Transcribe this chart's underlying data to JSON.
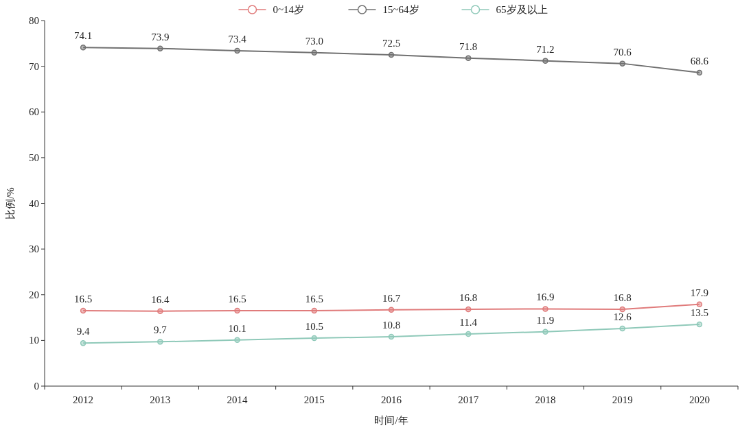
{
  "chart_data": {
    "type": "line",
    "xlabel": "时间/年",
    "ylabel": "比例/%",
    "categories": [
      "2012",
      "2013",
      "2014",
      "2015",
      "2016",
      "2017",
      "2018",
      "2019",
      "2020"
    ],
    "series": [
      {
        "name": "0~14岁",
        "color": "#e07b7b",
        "values": [
          16.5,
          16.4,
          16.5,
          16.5,
          16.7,
          16.8,
          16.9,
          16.8,
          17.9
        ],
        "value_labels": [
          "16.5",
          "16.4",
          "16.5",
          "16.5",
          "16.7",
          "16.8",
          "16.9",
          "16.8",
          "17.9"
        ]
      },
      {
        "name": "15~64岁",
        "color": "#707070",
        "values": [
          74.1,
          73.9,
          73.4,
          73.0,
          72.5,
          71.8,
          71.2,
          70.6,
          68.6
        ],
        "value_labels": [
          "74.1",
          "73.9",
          "73.4",
          "73.0",
          "72.5",
          "71.8",
          "71.2",
          "70.6",
          "68.6"
        ]
      },
      {
        "name": "65岁及以上",
        "color": "#8fc9b9",
        "values": [
          9.4,
          9.7,
          10.1,
          10.5,
          10.8,
          11.4,
          11.9,
          12.6,
          13.5
        ],
        "value_labels": [
          "9.4",
          "9.7",
          "10.1",
          "10.5",
          "10.8",
          "11.4",
          "11.9",
          "12.6",
          "13.5"
        ]
      }
    ],
    "ylim": [
      0,
      80
    ],
    "yticks": [
      0,
      10,
      20,
      30,
      40,
      50,
      60,
      70,
      80
    ],
    "legend": "top",
    "marker": "circle",
    "line_style": "solid",
    "grid": false
  }
}
